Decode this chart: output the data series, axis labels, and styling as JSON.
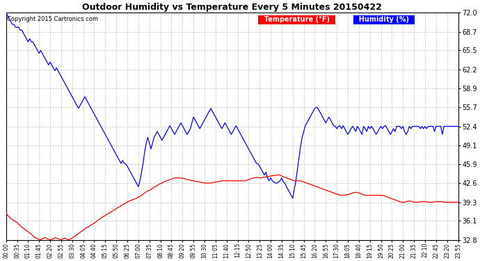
{
  "title": "Outdoor Humidity vs Temperature Every 5 Minutes 20150422",
  "copyright_text": "Copyright 2015 Cartronics.com",
  "legend_temp": "Temperature (°F)",
  "legend_hum": "Humidity (%)",
  "temp_color": "#ff0000",
  "hum_color": "#0000ff",
  "bg_color": "#ffffff",
  "grid_color": "#bbbbbb",
  "ylim": [
    32.8,
    72.0
  ],
  "yticks": [
    32.8,
    36.1,
    39.3,
    42.6,
    45.9,
    49.1,
    52.4,
    55.7,
    58.9,
    62.2,
    65.5,
    68.7,
    72.0
  ],
  "figsize": [
    6.9,
    3.75
  ],
  "dpi": 100,
  "humidity_data": [
    72.0,
    71.5,
    71.0,
    70.5,
    70.0,
    70.0,
    69.5,
    69.5,
    69.5,
    69.0,
    69.0,
    68.5,
    68.0,
    67.5,
    67.0,
    67.5,
    67.0,
    67.0,
    66.5,
    66.0,
    65.5,
    65.0,
    65.5,
    65.0,
    64.5,
    64.0,
    63.5,
    63.0,
    63.5,
    63.0,
    62.5,
    62.0,
    62.5,
    62.0,
    61.5,
    61.0,
    60.5,
    60.0,
    59.5,
    59.0,
    58.5,
    58.0,
    57.5,
    57.0,
    56.5,
    56.0,
    55.5,
    56.0,
    56.5,
    57.0,
    57.5,
    57.0,
    56.5,
    56.0,
    55.5,
    55.0,
    54.5,
    54.0,
    53.5,
    53.0,
    52.5,
    52.0,
    51.5,
    51.0,
    50.5,
    50.0,
    49.5,
    49.0,
    48.5,
    48.0,
    47.5,
    47.0,
    46.5,
    46.0,
    46.5,
    46.0,
    45.9,
    45.5,
    45.0,
    44.5,
    44.0,
    43.5,
    43.0,
    42.5,
    42.0,
    43.0,
    44.5,
    46.0,
    48.0,
    49.5,
    50.5,
    49.5,
    48.5,
    49.5,
    50.5,
    51.0,
    51.5,
    51.0,
    50.5,
    50.0,
    50.5,
    51.0,
    51.5,
    52.0,
    52.5,
    52.0,
    51.5,
    51.0,
    51.5,
    52.0,
    52.5,
    53.0,
    52.5,
    52.0,
    51.5,
    51.0,
    51.5,
    52.0,
    53.0,
    54.0,
    53.5,
    53.0,
    52.5,
    52.0,
    52.5,
    53.0,
    53.5,
    54.0,
    54.5,
    55.0,
    55.5,
    55.0,
    54.5,
    54.0,
    53.5,
    53.0,
    52.5,
    52.0,
    52.5,
    53.0,
    52.5,
    52.0,
    51.5,
    51.0,
    51.5,
    52.0,
    52.5,
    52.0,
    51.5,
    51.0,
    50.5,
    50.0,
    49.5,
    49.0,
    48.5,
    48.0,
    47.5,
    47.0,
    46.5,
    46.0,
    45.9,
    45.5,
    45.0,
    44.5,
    44.0,
    44.5,
    43.5,
    43.0,
    43.5,
    43.0,
    42.8,
    42.6,
    42.6,
    42.8,
    43.0,
    43.5,
    42.8,
    42.6,
    42.0,
    41.5,
    41.0,
    40.5,
    40.0,
    41.5,
    43.0,
    45.0,
    47.0,
    49.0,
    50.5,
    51.5,
    52.5,
    53.0,
    53.5,
    54.0,
    54.5,
    55.0,
    55.5,
    55.7,
    55.5,
    55.0,
    54.5,
    54.0,
    53.5,
    53.0,
    53.5,
    54.0,
    53.5,
    53.0,
    52.5,
    52.4,
    52.0,
    52.4,
    52.5,
    52.0,
    52.5,
    52.0,
    51.5,
    51.0,
    51.5,
    52.0,
    52.4,
    52.0,
    51.5,
    52.4,
    52.0,
    51.5,
    51.0,
    52.4,
    52.0,
    51.5,
    52.4,
    52.0,
    52.4,
    52.0,
    51.5,
    51.0,
    51.5,
    52.0,
    52.4,
    52.0,
    52.4,
    52.5,
    52.0,
    51.5,
    51.0,
    51.5,
    52.0,
    51.5,
    52.4,
    52.4,
    52.4,
    52.0,
    52.4,
    51.5,
    51.0,
    51.5,
    52.4,
    52.0,
    52.4,
    52.4,
    52.4,
    52.4,
    52.4,
    52.0,
    52.4,
    52.0,
    52.4,
    52.0,
    52.4,
    52.4,
    52.4,
    52.4,
    51.5,
    52.4,
    52.4,
    52.4,
    52.4,
    51.0,
    52.4,
    52.4,
    52.4,
    52.4,
    52.4,
    52.4,
    52.4,
    52.4,
    52.4,
    52.4
  ],
  "temp_data": [
    37.5,
    37.0,
    36.8,
    36.5,
    36.3,
    36.1,
    36.0,
    35.8,
    35.5,
    35.3,
    35.0,
    34.8,
    34.6,
    34.4,
    34.2,
    34.0,
    33.8,
    33.5,
    33.3,
    33.1,
    33.0,
    32.9,
    32.8,
    33.0,
    33.1,
    33.2,
    33.0,
    32.9,
    32.8,
    32.9,
    33.0,
    33.2,
    33.1,
    33.0,
    32.9,
    32.8,
    33.0,
    33.1,
    33.0,
    32.9,
    32.8,
    33.0,
    33.1,
    33.3,
    33.5,
    33.7,
    33.9,
    34.1,
    34.3,
    34.5,
    34.7,
    34.9,
    35.0,
    35.2,
    35.4,
    35.5,
    35.7,
    35.9,
    36.1,
    36.3,
    36.5,
    36.7,
    36.9,
    37.0,
    37.2,
    37.4,
    37.5,
    37.7,
    37.9,
    38.0,
    38.2,
    38.4,
    38.5,
    38.7,
    38.9,
    39.0,
    39.2,
    39.3,
    39.5,
    39.6,
    39.7,
    39.8,
    39.9,
    40.0,
    40.2,
    40.3,
    40.5,
    40.7,
    40.9,
    41.1,
    41.3,
    41.3,
    41.5,
    41.7,
    41.9,
    42.0,
    42.2,
    42.4,
    42.5,
    42.6,
    42.8,
    42.9,
    43.0,
    43.1,
    43.2,
    43.3,
    43.4,
    43.5,
    43.5,
    43.5,
    43.5,
    43.5,
    43.4,
    43.4,
    43.3,
    43.2,
    43.2,
    43.1,
    43.0,
    43.0,
    42.9,
    42.9,
    42.8,
    42.8,
    42.7,
    42.7,
    42.6,
    42.6,
    42.6,
    42.6,
    42.6,
    42.7,
    42.7,
    42.8,
    42.8,
    42.9,
    42.9,
    43.0,
    43.0,
    43.0,
    43.0,
    43.0,
    43.0,
    43.0,
    43.0,
    43.0,
    43.0,
    43.0,
    43.0,
    43.0,
    43.0,
    43.0,
    43.0,
    43.1,
    43.2,
    43.3,
    43.4,
    43.5,
    43.5,
    43.6,
    43.6,
    43.5,
    43.5,
    43.6,
    43.6,
    43.7,
    43.7,
    43.8,
    43.8,
    43.9,
    43.9,
    43.9,
    44.0,
    44.0,
    44.0,
    43.8,
    43.7,
    43.6,
    43.5,
    43.4,
    43.3,
    43.2,
    43.1,
    43.0,
    43.0,
    43.0,
    43.0,
    43.0,
    42.9,
    42.8,
    42.7,
    42.6,
    42.5,
    42.4,
    42.3,
    42.2,
    42.1,
    42.0,
    41.9,
    41.8,
    41.7,
    41.6,
    41.5,
    41.4,
    41.3,
    41.2,
    41.1,
    41.0,
    40.9,
    40.8,
    40.7,
    40.6,
    40.5,
    40.5,
    40.5,
    40.5,
    40.6,
    40.6,
    40.7,
    40.8,
    40.9,
    41.0,
    41.0,
    41.0,
    40.9,
    40.8,
    40.7,
    40.6,
    40.5,
    40.5,
    40.5,
    40.5,
    40.5,
    40.5,
    40.5,
    40.5,
    40.5,
    40.5,
    40.5,
    40.5,
    40.4,
    40.3,
    40.2,
    40.1,
    40.0,
    39.9,
    39.8,
    39.7,
    39.6,
    39.5,
    39.4,
    39.3,
    39.3,
    39.3,
    39.4,
    39.5,
    39.5,
    39.5,
    39.4,
    39.3,
    39.3,
    39.3,
    39.3,
    39.4,
    39.4,
    39.4,
    39.4,
    39.4,
    39.3,
    39.3,
    39.3,
    39.3,
    39.4,
    39.4,
    39.4,
    39.4,
    39.4,
    39.4,
    39.3,
    39.3,
    39.3,
    39.3,
    39.3,
    39.3,
    39.3,
    39.3,
    39.3,
    39.3
  ],
  "xtick_step": 7,
  "title_fontsize": 9,
  "tick_fontsize": 5.5,
  "ytick_fontsize": 7,
  "legend_fontsize": 7,
  "copyright_fontsize": 6,
  "line_width": 0.9
}
